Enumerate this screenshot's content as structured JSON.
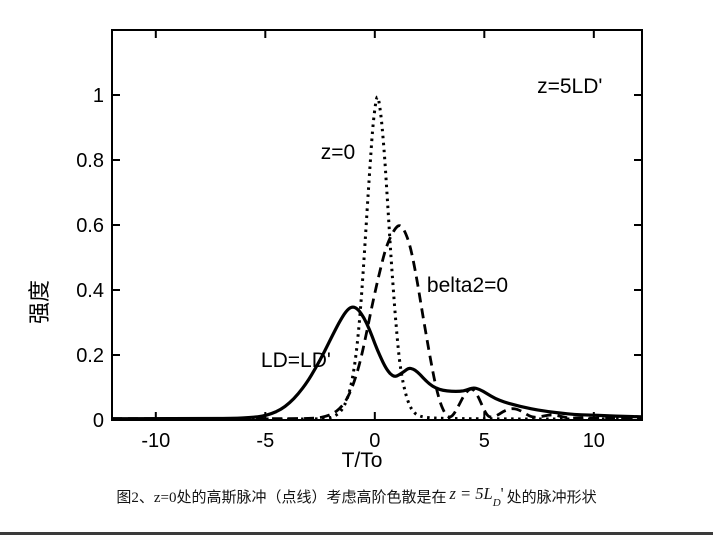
{
  "chart_data": {
    "type": "line",
    "title": "",
    "xlabel": "T/To",
    "ylabel": "强度",
    "xlim": [
      -12,
      12.2
    ],
    "ylim": [
      0,
      1.2
    ],
    "xticks": [
      -10,
      -5,
      0,
      5,
      10
    ],
    "yticks": [
      0,
      0.2,
      0.4,
      0.6,
      0.8,
      1
    ],
    "grid": false,
    "legend_position": "none (inline text annotations)",
    "annotations": [
      {
        "text": "z=5LD'",
        "x": 7.41,
        "y": 1.028
      },
      {
        "text": "z=0",
        "x": -2.47,
        "y": 0.825
      },
      {
        "text": "belta2=0",
        "x": 2.38,
        "y": 0.415
      },
      {
        "text": "LD=LD'",
        "x": -5.2,
        "y": 0.185
      }
    ],
    "series": [
      {
        "name": "z=0 input Gaussian pulse",
        "style": "dotted",
        "points": [
          [
            -12,
            0.003
          ],
          [
            -6,
            0.003
          ],
          [
            -3,
            0.003
          ],
          [
            -2.2,
            0.004
          ],
          [
            -1.8,
            0.012
          ],
          [
            -1.5,
            0.03
          ],
          [
            -1.25,
            0.065
          ],
          [
            -1.05,
            0.115
          ],
          [
            -0.85,
            0.2
          ],
          [
            -0.65,
            0.34
          ],
          [
            -0.45,
            0.54
          ],
          [
            -0.25,
            0.75
          ],
          [
            -0.1,
            0.9
          ],
          [
            0.05,
            0.985
          ],
          [
            0.15,
            1.0
          ],
          [
            0.3,
            0.93
          ],
          [
            0.45,
            0.81
          ],
          [
            0.6,
            0.65
          ],
          [
            0.75,
            0.49
          ],
          [
            0.9,
            0.35
          ],
          [
            1.05,
            0.23
          ],
          [
            1.2,
            0.145
          ],
          [
            1.4,
            0.08
          ],
          [
            1.6,
            0.042
          ],
          [
            1.8,
            0.022
          ],
          [
            2,
            0.013
          ],
          [
            2.3,
            0.008
          ],
          [
            2.7,
            0.006
          ],
          [
            3.2,
            0.005
          ],
          [
            4,
            0.004
          ],
          [
            5,
            0.004
          ],
          [
            7,
            0.003
          ],
          [
            9,
            0.003
          ],
          [
            12.2,
            0.003
          ]
        ]
      },
      {
        "name": "belta2=0",
        "style": "dashed",
        "points": [
          [
            -12,
            0.004
          ],
          [
            -6,
            0.004
          ],
          [
            -3.5,
            0.004
          ],
          [
            -2.6,
            0.006
          ],
          [
            -2.2,
            0.012
          ],
          [
            -1.9,
            0.02
          ],
          [
            -1.6,
            0.035
          ],
          [
            -1.3,
            0.06
          ],
          [
            -1,
            0.105
          ],
          [
            -0.7,
            0.17
          ],
          [
            -0.4,
            0.26
          ],
          [
            -0.1,
            0.36
          ],
          [
            0.2,
            0.45
          ],
          [
            0.5,
            0.53
          ],
          [
            0.8,
            0.575
          ],
          [
            1,
            0.595
          ],
          [
            1.15,
            0.6
          ],
          [
            1.35,
            0.585
          ],
          [
            1.6,
            0.54
          ],
          [
            1.85,
            0.46
          ],
          [
            2.1,
            0.36
          ],
          [
            2.35,
            0.26
          ],
          [
            2.6,
            0.165
          ],
          [
            2.8,
            0.1
          ],
          [
            3,
            0.05
          ],
          [
            3.2,
            0.02
          ],
          [
            3.35,
            0.008
          ],
          [
            3.55,
            0.012
          ],
          [
            3.8,
            0.04
          ],
          [
            4.1,
            0.08
          ],
          [
            4.4,
            0.1
          ],
          [
            4.65,
            0.082
          ],
          [
            4.9,
            0.045
          ],
          [
            5.1,
            0.016
          ],
          [
            5.3,
            0.007
          ],
          [
            5.6,
            0.014
          ],
          [
            5.9,
            0.028
          ],
          [
            6.3,
            0.037
          ],
          [
            6.7,
            0.028
          ],
          [
            7,
            0.014
          ],
          [
            7.3,
            0.007
          ],
          [
            7.7,
            0.012
          ],
          [
            8.1,
            0.017
          ],
          [
            8.5,
            0.011
          ],
          [
            8.9,
            0.005
          ],
          [
            9.4,
            0.008
          ],
          [
            9.9,
            0.005
          ],
          [
            10.5,
            0.006
          ],
          [
            11.2,
            0.004
          ],
          [
            12.2,
            0.004
          ]
        ]
      },
      {
        "name": "LD=LD'",
        "style": "solid",
        "points": [
          [
            -12,
            0.004
          ],
          [
            -8,
            0.004
          ],
          [
            -6.3,
            0.005
          ],
          [
            -5.6,
            0.008
          ],
          [
            -5.1,
            0.012
          ],
          [
            -4.7,
            0.02
          ],
          [
            -4.3,
            0.032
          ],
          [
            -3.9,
            0.052
          ],
          [
            -3.5,
            0.08
          ],
          [
            -3.1,
            0.115
          ],
          [
            -2.7,
            0.16
          ],
          [
            -2.3,
            0.21
          ],
          [
            -1.9,
            0.265
          ],
          [
            -1.55,
            0.31
          ],
          [
            -1.25,
            0.34
          ],
          [
            -1,
            0.35
          ],
          [
            -0.75,
            0.34
          ],
          [
            -0.5,
            0.315
          ],
          [
            -0.25,
            0.28
          ],
          [
            0,
            0.235
          ],
          [
            0.25,
            0.195
          ],
          [
            0.5,
            0.16
          ],
          [
            0.7,
            0.142
          ],
          [
            0.9,
            0.133
          ],
          [
            1.1,
            0.138
          ],
          [
            1.35,
            0.15
          ],
          [
            1.55,
            0.16
          ],
          [
            1.75,
            0.157
          ],
          [
            1.95,
            0.148
          ],
          [
            2.2,
            0.13
          ],
          [
            2.5,
            0.11
          ],
          [
            2.8,
            0.098
          ],
          [
            3.1,
            0.091
          ],
          [
            3.5,
            0.088
          ],
          [
            3.9,
            0.088
          ],
          [
            4.2,
            0.092
          ],
          [
            4.5,
            0.1
          ],
          [
            4.8,
            0.094
          ],
          [
            5.1,
            0.082
          ],
          [
            5.5,
            0.066
          ],
          [
            5.9,
            0.055
          ],
          [
            6.4,
            0.046
          ],
          [
            6.9,
            0.038
          ],
          [
            7.4,
            0.031
          ],
          [
            7.9,
            0.026
          ],
          [
            8.5,
            0.021
          ],
          [
            9.1,
            0.017
          ],
          [
            9.8,
            0.015
          ],
          [
            10.6,
            0.013
          ],
          [
            11.4,
            0.011
          ],
          [
            12.2,
            0.01
          ]
        ]
      }
    ]
  },
  "caption": {
    "prefix": "图2、z=0处的高斯脉冲（点线）考虑高阶色散是在",
    "math_pre": "z = 5L",
    "math_sub": "D",
    "math_prime": "'",
    "suffix": "处的脉冲形状"
  }
}
